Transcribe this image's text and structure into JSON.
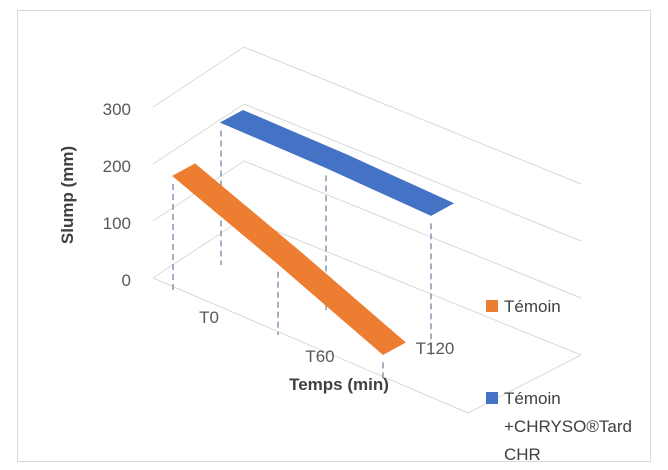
{
  "chart_data": {
    "type": "line",
    "title": "",
    "xlabel": "Temps (min)",
    "ylabel": "Slump (mm)",
    "categories": [
      "T0",
      "T60",
      "T120"
    ],
    "ylim": [
      0,
      300
    ],
    "yticks": [
      "0",
      "100",
      "200",
      "300"
    ],
    "grid": true,
    "legend_position": "right",
    "series": [
      {
        "name": "Témoin",
        "values": [
          200,
          125,
          45
        ],
        "color": "#ED7D31"
      },
      {
        "name": "Témoin +CHRYSO®Tard CHR",
        "values": [
          250,
          250,
          245
        ],
        "color": "#4472C4",
        "legend_lines": [
          "Témoin",
          "+CHRYSO®Tard",
          "CHR"
        ]
      }
    ]
  }
}
